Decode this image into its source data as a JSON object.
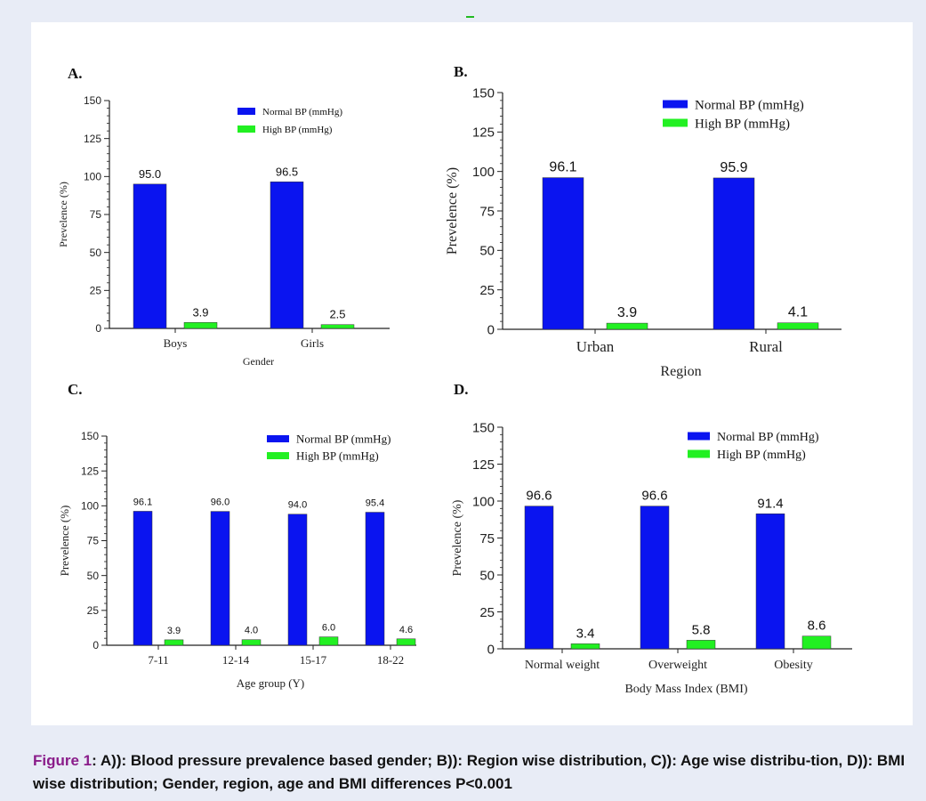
{
  "chart_data": [
    {
      "type": "bar",
      "panel_label": "A.",
      "categories": [
        "Boys",
        "Girls"
      ],
      "series": [
        {
          "name": "Normal BP (mmHg)",
          "values": [
            95.0,
            96.5
          ],
          "labels": [
            "95.0",
            "96.5"
          ]
        },
        {
          "name": "High BP (mmHg)",
          "values": [
            3.9,
            2.5
          ],
          "labels": [
            "3.9",
            "2.5"
          ]
        }
      ],
      "xlabel": "Gender",
      "ylabel": "Prevelence (%)",
      "ylim": [
        0,
        150
      ],
      "yticks": [
        0,
        25,
        50,
        75,
        100,
        125,
        150
      ],
      "legend": "top-right",
      "grid": false
    },
    {
      "type": "bar",
      "panel_label": "B.",
      "categories": [
        "Urban",
        "Rural"
      ],
      "series": [
        {
          "name": "Normal BP (mmHg)",
          "values": [
            96.1,
            95.9
          ],
          "labels": [
            "96.1",
            "95.9"
          ]
        },
        {
          "name": "High BP (mmHg)",
          "values": [
            3.9,
            4.1
          ],
          "labels": [
            "3.9",
            "4.1"
          ]
        }
      ],
      "xlabel": "Region",
      "ylabel": "Prevelence (%)",
      "ylim": [
        0,
        150
      ],
      "yticks": [
        0,
        25,
        50,
        75,
        100,
        125,
        150
      ],
      "legend": "top-right",
      "grid": false
    },
    {
      "type": "bar",
      "panel_label": "C.",
      "categories": [
        "7-11",
        "12-14",
        "15-17",
        "18-22"
      ],
      "series": [
        {
          "name": "Normal BP (mmHg)",
          "values": [
            96.1,
            96.0,
            94.0,
            95.4
          ],
          "labels": [
            "96.1",
            "96.0",
            "94.0",
            "95.4"
          ]
        },
        {
          "name": "High BP (mmHg)",
          "values": [
            3.9,
            4.0,
            6.0,
            4.6
          ],
          "labels": [
            "3.9",
            "4.0",
            "6.0",
            "4.6"
          ]
        }
      ],
      "xlabel": "Age group (Y)",
      "ylabel": "Prevelence (%)",
      "ylim": [
        0,
        150
      ],
      "yticks": [
        0,
        25,
        50,
        75,
        100,
        125,
        150
      ],
      "legend": "top-right",
      "grid": false
    },
    {
      "type": "bar",
      "panel_label": "D.",
      "categories": [
        "Normal weight",
        "Overweight",
        "Obesity"
      ],
      "series": [
        {
          "name": "Normal BP (mmHg)",
          "values": [
            96.6,
            96.6,
            91.4
          ],
          "labels": [
            "96.6",
            "96.6",
            "91.4"
          ]
        },
        {
          "name": "High BP (mmHg)",
          "values": [
            3.4,
            5.8,
            8.6
          ],
          "labels": [
            "3.4",
            "5.8",
            "8.6"
          ]
        }
      ],
      "xlabel": "Body Mass Index (BMI)",
      "ylabel": "Prevelence (%)",
      "ylim": [
        0,
        150
      ],
      "yticks": [
        0,
        25,
        50,
        75,
        100,
        125,
        150
      ],
      "legend": "top-right",
      "grid": false
    }
  ],
  "colors": {
    "normal_bp": "#0a14f0",
    "high_bp": "#22f022",
    "caption_label": "#8a1c8a"
  },
  "caption": {
    "figure_label": "Figure 1",
    "separator": ": ",
    "text": "A)): Blood pressure prevalence based gender; B)): Region wise distribution, C)): Age wise distribu-tion, D)): BMI wise distribution; Gender, region, age and BMI differences P<0.001"
  }
}
